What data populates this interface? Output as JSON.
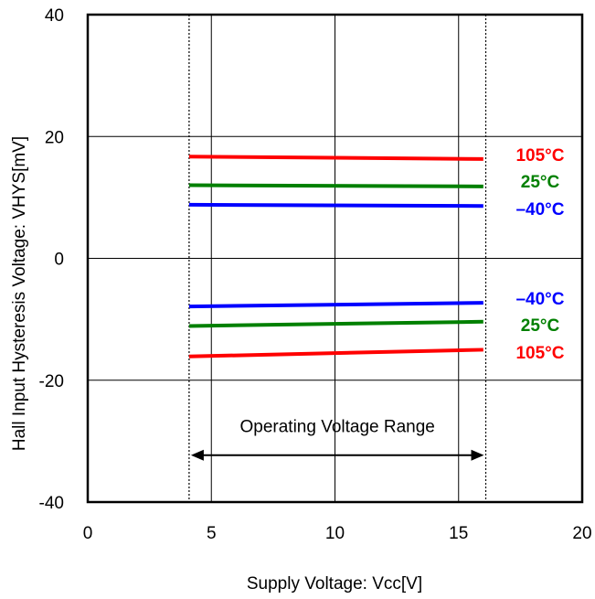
{
  "chart_data": {
    "type": "line",
    "title": "",
    "xlabel": "Supply Voltage: Vcc[V]",
    "ylabel": "Hall Input Hysteresis Voltage: VHYS[mV]",
    "xlim": [
      0,
      20
    ],
    "ylim": [
      -40,
      40
    ],
    "x_ticks": [
      "0",
      "5",
      "10",
      "15",
      "20"
    ],
    "y_ticks": [
      "40",
      "20",
      "0",
      "-20",
      "-40"
    ],
    "grid": true,
    "operating_range": {
      "label": "Operating Voltage Range",
      "x_start": 4.1,
      "x_end": 16.1
    },
    "series": [
      {
        "name": "105°C",
        "group": "positive",
        "color": "#ff0000",
        "x": [
          4.1,
          16.0
        ],
        "values": [
          16.7,
          16.3
        ]
      },
      {
        "name": "25°C",
        "group": "positive",
        "color": "#008000",
        "x": [
          4.1,
          16.0
        ],
        "values": [
          12.0,
          11.8
        ]
      },
      {
        "name": "–40°C",
        "group": "positive",
        "color": "#0000ff",
        "x": [
          4.1,
          16.0
        ],
        "values": [
          8.8,
          8.6
        ]
      },
      {
        "name": "–40°C",
        "group": "negative",
        "color": "#0000ff",
        "x": [
          4.1,
          16.0
        ],
        "values": [
          -7.9,
          -7.3
        ]
      },
      {
        "name": "25°C",
        "group": "negative",
        "color": "#008000",
        "x": [
          4.1,
          16.0
        ],
        "values": [
          -11.1,
          -10.4
        ]
      },
      {
        "name": "105°C",
        "group": "negative",
        "color": "#ff0000",
        "x": [
          4.1,
          16.0
        ],
        "values": [
          -16.1,
          -15.0
        ]
      }
    ]
  }
}
